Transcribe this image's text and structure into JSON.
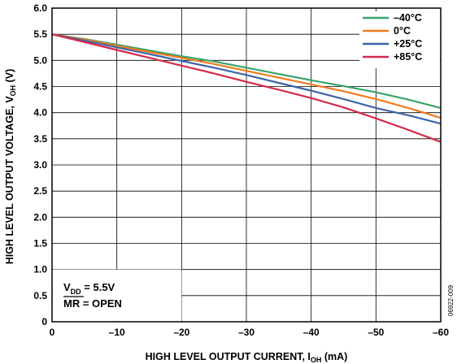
{
  "chart_data": {
    "type": "line",
    "xlabel": "HIGH LEVEL OUTPUT CURRENT, I",
    "xlabel_sub": "OH",
    "xlabel_unit": " (mA)",
    "ylabel": "HIGH LEVEL OUTPUT VOLTAGE, V",
    "ylabel_sub": "OH",
    "ylabel_unit": " (V)",
    "xlim": [
      0,
      -60
    ],
    "ylim": [
      0,
      6.0
    ],
    "x_ticks": [
      "0",
      "–10",
      "–20",
      "–30",
      "–40",
      "–50",
      "–60"
    ],
    "x_tick_values": [
      0,
      -10,
      -20,
      -30,
      -40,
      -50,
      -60
    ],
    "y_ticks": [
      "0",
      "0.5",
      "1.0",
      "1.5",
      "2.0",
      "2.5",
      "3.0",
      "3.5",
      "4.0",
      "4.5",
      "5.0",
      "5.5",
      "6.0"
    ],
    "y_tick_values": [
      0,
      0.5,
      1.0,
      1.5,
      2.0,
      2.5,
      3.0,
      3.5,
      4.0,
      4.5,
      5.0,
      5.5,
      6.0
    ],
    "grid": true,
    "legend_position": "top-right",
    "x": [
      0,
      -5,
      -10,
      -15,
      -20,
      -25,
      -30,
      -35,
      -40,
      -45,
      -50,
      -55,
      -60
    ],
    "series": [
      {
        "name": "–40°C",
        "color": "#3aa46a",
        "values": [
          5.5,
          5.41,
          5.3,
          5.19,
          5.08,
          4.98,
          4.86,
          4.74,
          4.62,
          4.51,
          4.39,
          4.25,
          4.09
        ]
      },
      {
        "name": "0°C",
        "color": "#f07c1e",
        "values": [
          5.5,
          5.4,
          5.28,
          5.16,
          5.05,
          4.93,
          4.8,
          4.67,
          4.54,
          4.41,
          4.26,
          4.09,
          3.9
        ]
      },
      {
        "name": "+25°C",
        "color": "#3f64a8",
        "values": [
          5.5,
          5.38,
          5.25,
          5.12,
          4.99,
          4.86,
          4.72,
          4.57,
          4.42,
          4.26,
          4.09,
          3.95,
          3.79
        ]
      },
      {
        "name": "+85°C",
        "color": "#d42a4a",
        "values": [
          5.5,
          5.35,
          5.2,
          5.05,
          4.9,
          4.75,
          4.59,
          4.44,
          4.28,
          4.1,
          3.89,
          3.67,
          3.44
        ]
      }
    ],
    "annotation": {
      "line1_main": "V",
      "line1_sub": "DD",
      "line1_rest": " = 5.5V",
      "line2_over": "MR",
      "line2_rest": " = OPEN"
    },
    "figure_id": "06922-009"
  }
}
